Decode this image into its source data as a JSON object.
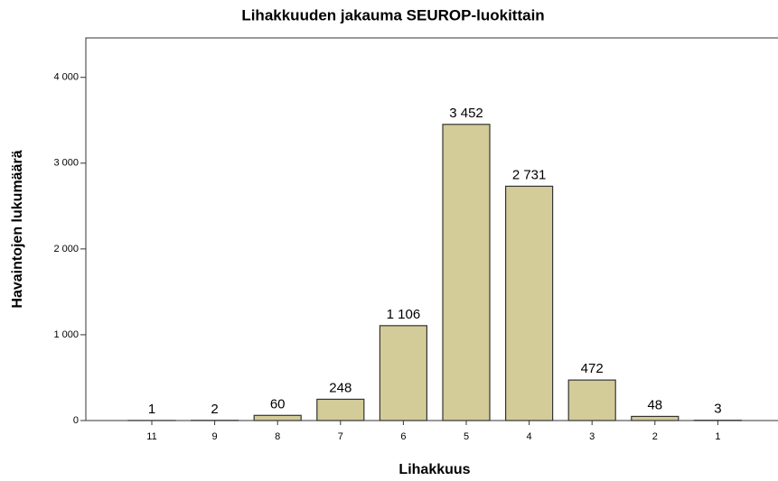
{
  "chart_data": {
    "type": "bar",
    "title": "Lihakkuuden jakauma SEUROP-luokittain",
    "x_label": "Lihakkuus",
    "y_label": "Havaintojen lukumäärä",
    "categories": [
      "11",
      "9",
      "8",
      "7",
      "6",
      "5",
      "4",
      "3",
      "2",
      "1"
    ],
    "values": [
      1,
      2,
      60,
      248,
      1106,
      3452,
      2731,
      472,
      48,
      3
    ],
    "value_labels": [
      "1",
      "2",
      "60",
      "248",
      "1 106",
      "3 452",
      "2 731",
      "472",
      "48",
      "3"
    ],
    "color": "#d4cc98",
    "ylim": [
      0,
      4460
    ],
    "yticks": [
      0,
      {
        "value": 1000,
        "label": "1 000"
      },
      {
        "value": 2000,
        "label": "2 000"
      },
      {
        "value": 3000,
        "label": "3 000"
      },
      {
        "value": 4000,
        "label": "4 000"
      }
    ]
  }
}
